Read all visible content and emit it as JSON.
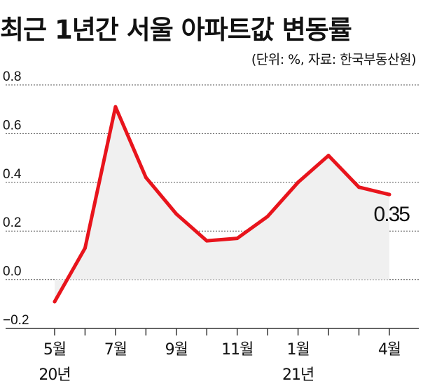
{
  "chart_data": {
    "type": "line",
    "title": "최근 1년간 서울 아파트값 변동률",
    "subtitle": "(단위: %, 자료: 한국부동산원)",
    "x": [
      "2020-05",
      "2020-06",
      "2020-07",
      "2020-08",
      "2020-09",
      "2020-10",
      "2020-11",
      "2020-12",
      "2021-01",
      "2021-02",
      "2021-03",
      "2021-04"
    ],
    "series": [
      {
        "values": [
          -0.09,
          0.13,
          0.71,
          0.42,
          0.27,
          0.16,
          0.17,
          0.26,
          0.4,
          0.51,
          0.38,
          0.35
        ]
      }
    ],
    "ylim": [
      -0.2,
      0.8
    ],
    "yticks": [
      {
        "value": 0.8,
        "label": "0.8"
      },
      {
        "value": 0.6,
        "label": "0.6"
      },
      {
        "value": 0.4,
        "label": "0.4"
      },
      {
        "value": 0.2,
        "label": "0.2"
      },
      {
        "value": 0.0,
        "label": "0.0"
      },
      {
        "value": -0.2,
        "label": "−0.2"
      }
    ],
    "xtick_labels": [
      {
        "index": 0,
        "lines": [
          "5월",
          "20년"
        ]
      },
      {
        "index": 2,
        "lines": [
          "7월"
        ]
      },
      {
        "index": 4,
        "lines": [
          "9월"
        ]
      },
      {
        "index": 6,
        "lines": [
          "11월"
        ]
      },
      {
        "index": 8,
        "lines": [
          "1월",
          "21년"
        ]
      },
      {
        "index": 11,
        "lines": [
          "4월"
        ]
      }
    ],
    "data_labels": [
      {
        "index": 11,
        "text": "0.35"
      }
    ],
    "grid": true,
    "colors": {
      "line": "#e8141c",
      "fill": "#f0f0f0",
      "grid": "#555555",
      "axis": "#333333"
    }
  }
}
